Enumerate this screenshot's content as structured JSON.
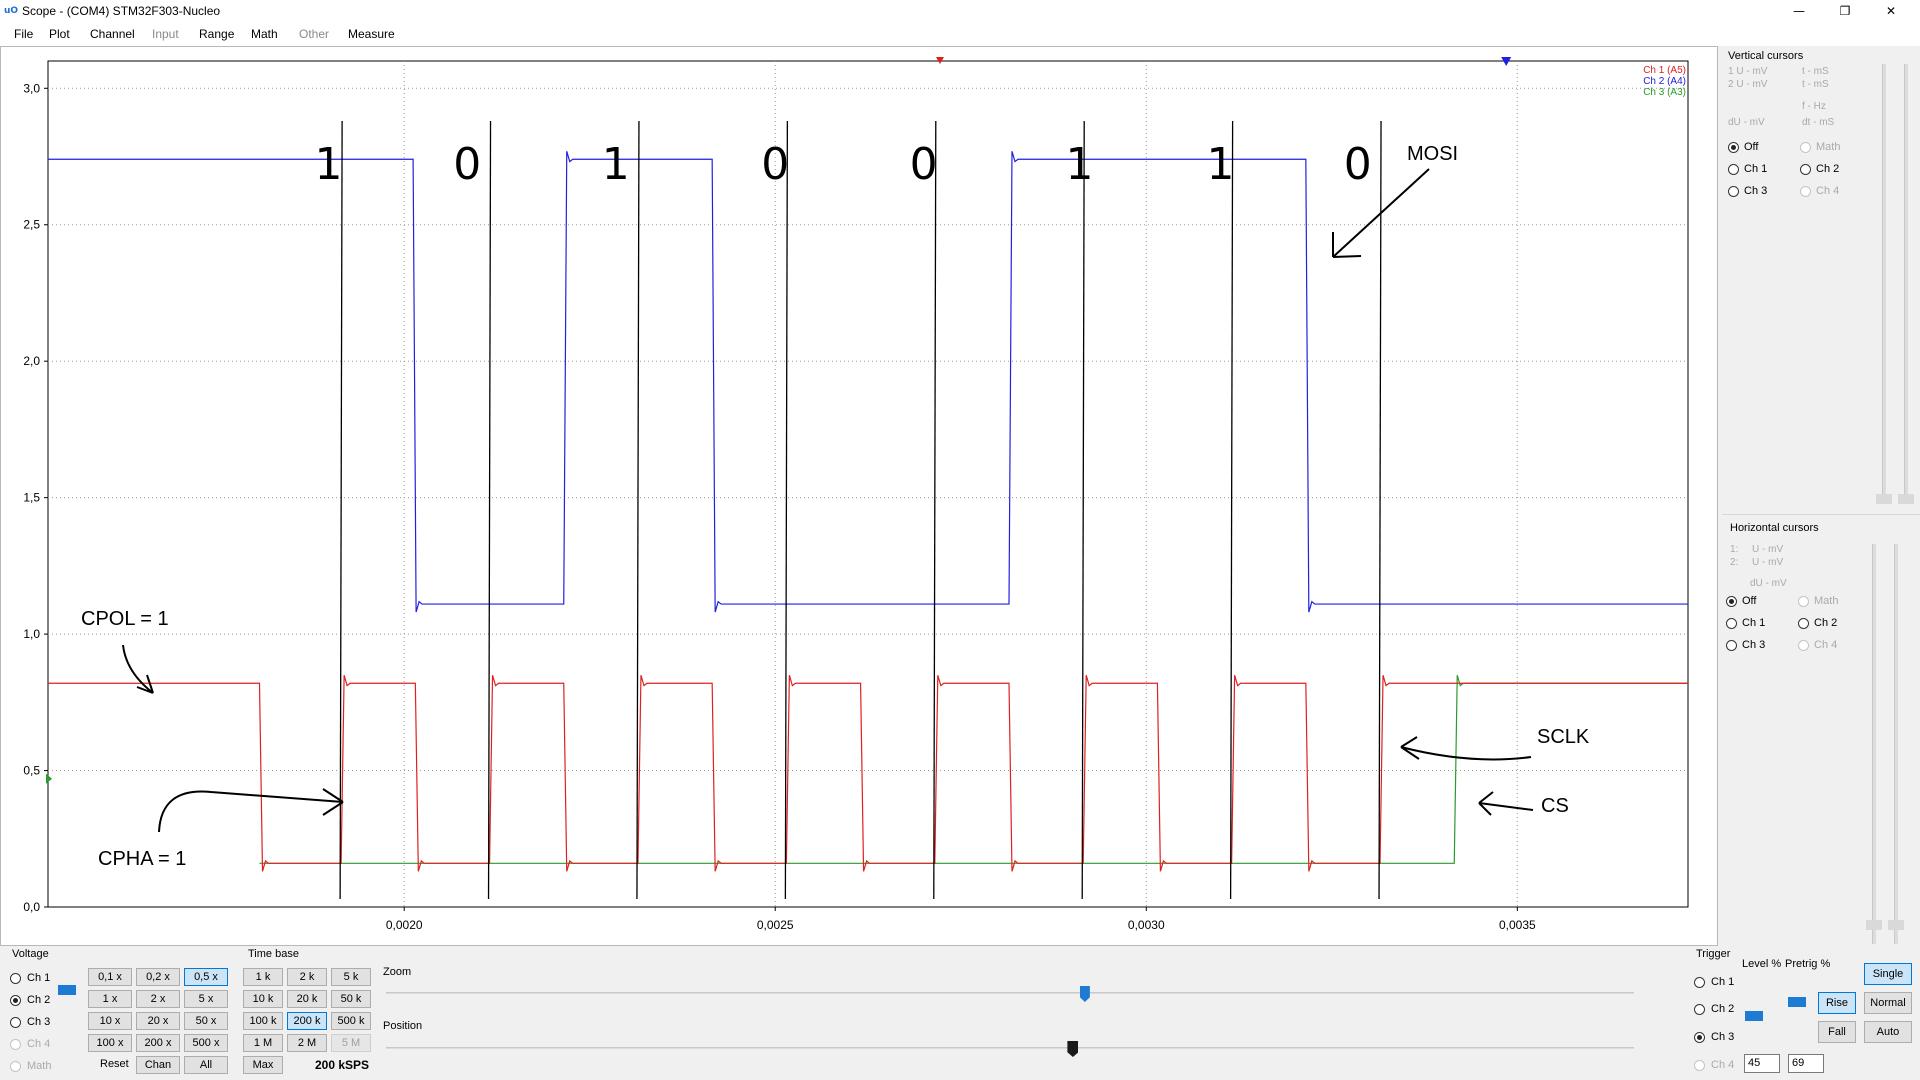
{
  "window": {
    "title": "Scope - (COM4) STM32F303-Nucleo",
    "icon": "scope-app-icon",
    "icon_text": "uO",
    "minimize": "—",
    "maximize": "❐",
    "close": "✕"
  },
  "menu": [
    {
      "label": "File",
      "enabled": true
    },
    {
      "label": "Plot",
      "enabled": true
    },
    {
      "label": "Channel",
      "enabled": true
    },
    {
      "label": "Input",
      "enabled": false
    },
    {
      "label": "Range",
      "enabled": true
    },
    {
      "label": "Math",
      "enabled": true
    },
    {
      "label": "Other",
      "enabled": false
    },
    {
      "label": "Measure",
      "enabled": true
    }
  ],
  "plot": {
    "y_ticks": [
      "3,0",
      "2,5",
      "2,0",
      "1,5",
      "1,0",
      "0,5",
      "0,0"
    ],
    "x_ticks": [
      "0,0020",
      "0,0025",
      "0,0030",
      "0,0035"
    ],
    "legend": [
      {
        "label": "Ch 1 (A5)",
        "color": "#e02020"
      },
      {
        "label": "Ch 2 (A4)",
        "color": "#2020e0"
      },
      {
        "label": "Ch 3 (A3)",
        "color": "#2a9a2a"
      }
    ],
    "annotations": {
      "bits": [
        "1",
        "0",
        "1",
        "0",
        "0",
        "1",
        "1",
        "0"
      ],
      "mosi": "MOSI",
      "cpol": "CPOL = 1",
      "cpha": "CPHA = 1",
      "sclk": "SCLK",
      "cs": "CS"
    },
    "colors": {
      "ch1": "#e02020",
      "ch2": "#2020e0",
      "ch3": "#2a9a2a",
      "grid": "#9a9a9a",
      "ink": "#000000"
    }
  },
  "chart_data": {
    "type": "line",
    "x_unit": "s",
    "xlim": [
      0.00152,
      0.00373
    ],
    "ylim": [
      0.0,
      3.1
    ],
    "x_ticks": [
      0.002,
      0.0025,
      0.003,
      0.0035
    ],
    "y_ticks": [
      0.0,
      0.5,
      1.0,
      1.5,
      2.0,
      2.5,
      3.0
    ],
    "grid": true,
    "legend_position": "top-right",
    "series": [
      {
        "name": "Ch 1 (A5)",
        "color": "#e02020",
        "high": 0.82,
        "low": 0.16,
        "initial": "high",
        "transitions": [
          0.001805,
          0.001915,
          0.002015,
          0.002115,
          0.002215,
          0.002315,
          0.002415,
          0.002515,
          0.002615,
          0.002715,
          0.002815,
          0.002915,
          0.003015,
          0.003115,
          0.003215,
          0.003315
        ]
      },
      {
        "name": "Ch 2 (A4)",
        "color": "#2020e0",
        "high": 2.74,
        "low": 1.11,
        "initial": "high",
        "transitions": [
          0.002012,
          0.002215,
          0.002415,
          0.002815,
          0.003215
        ]
      },
      {
        "name": "Ch 3 (A3)",
        "color": "#2a9a2a",
        "high": 0.82,
        "low": 0.16,
        "initial": "low",
        "start": 0.001805,
        "transitions": [
          0.003415
        ]
      }
    ]
  },
  "vertical_cursors": {
    "title": "Vertical cursors",
    "readouts": [
      "1 U - mV",
      "2 U - mV",
      "t - mS",
      "t - mS",
      "f - Hz",
      "dU - mV",
      "dt - mS"
    ],
    "options": [
      {
        "label": "Off",
        "selected": true,
        "enabled": true
      },
      {
        "label": "Math",
        "selected": false,
        "enabled": false
      },
      {
        "label": "Ch 1",
        "selected": false,
        "enabled": true
      },
      {
        "label": "Ch 2",
        "selected": false,
        "enabled": true
      },
      {
        "label": "Ch 3",
        "selected": false,
        "enabled": true
      },
      {
        "label": "Ch 4",
        "selected": false,
        "enabled": false
      }
    ]
  },
  "horizontal_cursors": {
    "title": "Horizontal cursors",
    "readouts": [
      "1:",
      "U - mV",
      "2:",
      "U - mV",
      "dU - mV"
    ],
    "options": [
      {
        "label": "Off",
        "selected": true,
        "enabled": true
      },
      {
        "label": "Math",
        "selected": false,
        "enabled": false
      },
      {
        "label": "Ch 1",
        "selected": false,
        "enabled": true
      },
      {
        "label": "Ch 2",
        "selected": false,
        "enabled": true
      },
      {
        "label": "Ch 3",
        "selected": false,
        "enabled": true
      },
      {
        "label": "Ch 4",
        "selected": false,
        "enabled": false
      }
    ]
  },
  "voltage": {
    "title": "Voltage",
    "channels": [
      {
        "label": "Ch 1",
        "selected": false,
        "enabled": true
      },
      {
        "label": "Ch 2",
        "selected": true,
        "enabled": true
      },
      {
        "label": "Ch 3",
        "selected": false,
        "enabled": true
      },
      {
        "label": "Ch 4",
        "selected": false,
        "enabled": false
      },
      {
        "label": "Math",
        "selected": false,
        "enabled": false
      }
    ],
    "scale_buttons": [
      "0,1 x",
      "0,2 x",
      "0,5 x",
      "1 x",
      "2 x",
      "5 x",
      "10 x",
      "20 x",
      "50 x",
      "100 x",
      "200 x",
      "500 x"
    ],
    "selected_scale": "0,5 x",
    "reset": "Reset",
    "chan": "Chan",
    "all": "All"
  },
  "timebase": {
    "title": "Time base",
    "buttons": [
      "1 k",
      "2 k",
      "5 k",
      "10 k",
      "20 k",
      "50 k",
      "100 k",
      "200 k",
      "500 k",
      "1 M",
      "2 M",
      "5 M"
    ],
    "selected": "200 k",
    "disabled": [
      "5 M"
    ],
    "max": "Max",
    "rate": "200 kSPS",
    "zoom_label": "Zoom",
    "position_label": "Position",
    "zoom_level": 0.56,
    "position_level": 0.55
  },
  "trigger": {
    "title": "Trigger",
    "channels": [
      {
        "label": "Ch 1",
        "selected": false,
        "enabled": true
      },
      {
        "label": "Ch 2",
        "selected": false,
        "enabled": true
      },
      {
        "label": "Ch 3",
        "selected": true,
        "enabled": true
      },
      {
        "label": "Ch 4",
        "selected": false,
        "enabled": false
      }
    ],
    "level_label": "Level %",
    "pretrig_label": "Pretrig %",
    "level_value": "45",
    "pretrig_value": "69",
    "edge_buttons": [
      "Rise",
      "Fall"
    ],
    "selected_edge": "Rise",
    "mode_buttons": [
      "Single",
      "Normal",
      "Auto"
    ],
    "selected_mode": "Single"
  }
}
